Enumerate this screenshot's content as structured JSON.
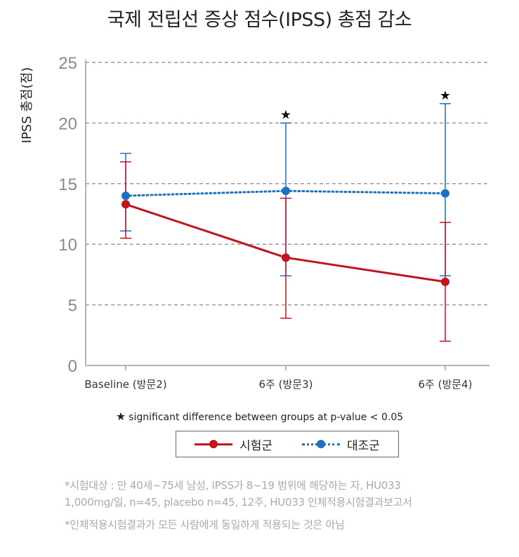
{
  "chart_data": {
    "type": "line",
    "title": "국제 전립선 증상 점수(IPSS) 총점 감소",
    "ylabel": "IPSS 총점(점)",
    "xlabel": "",
    "ylim": [
      0,
      25
    ],
    "yticks": [
      0,
      5,
      10,
      15,
      20,
      25
    ],
    "grid": "horizontal dashed",
    "categories": [
      "Baseline (방문2)",
      "6주 (방문3)",
      "6주 (방문4)"
    ],
    "series": [
      {
        "name": "시험군",
        "color": "#c0141e",
        "style": "solid",
        "values": [
          13.3,
          8.9,
          6.9
        ],
        "error_low": [
          10.5,
          3.9,
          2.0
        ],
        "error_high": [
          16.8,
          13.8,
          11.8
        ]
      },
      {
        "name": "대조군",
        "color": "#1a72c4",
        "style": "dotted",
        "values": [
          14.0,
          14.4,
          14.2
        ],
        "error_low": [
          11.1,
          7.4,
          7.4
        ],
        "error_high": [
          17.5,
          20.0,
          21.6
        ]
      }
    ],
    "significance_markers": [
      "",
      "★",
      "★"
    ],
    "annotation": "significant difference between groups at p-value < 0.05",
    "legend_position": "bottom"
  },
  "star_symbol": "★",
  "footnotes": [
    "*시험대상 : 만 40세~75세 남성, IPSS가 8~19 범위에 해당하는 자, HU033",
    "1,000mg/일, n=45, placebo n=45, 12주, HU033 인체적용시험결과보고서",
    "*인체적용시험결과가 모든 사람에게 동일하게 적용되는 것은 아님"
  ]
}
